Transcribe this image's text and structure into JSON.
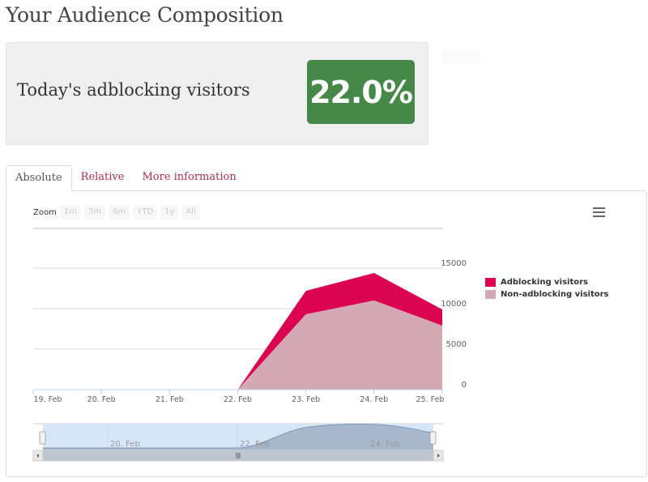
{
  "page": {
    "title": "Your Audience Composition"
  },
  "stat": {
    "label": "Today's adblocking visitors",
    "value": "22.0%",
    "badge_color": "#468847"
  },
  "tabs": [
    {
      "label": "Absolute",
      "active": true
    },
    {
      "label": "Relative",
      "active": false
    },
    {
      "label": "More information",
      "active": false
    }
  ],
  "zoom": {
    "label": "Zoom",
    "buttons": [
      "1m",
      "3m",
      "6m",
      "YTD",
      "1y",
      "All"
    ]
  },
  "menu": {
    "icon": "hamburger-menu-icon"
  },
  "legend": [
    {
      "label": "Adblocking visitors",
      "color": "#dc0450"
    },
    {
      "label": "Non-adblocking visitors",
      "color": "#d4a9b6"
    }
  ],
  "navigator": {
    "labels": [
      "20. Feb",
      "22. Feb",
      "24. Feb"
    ],
    "scroll_grip": "III"
  },
  "chart_data": {
    "type": "area",
    "stacked": true,
    "title": "",
    "xlabel": "",
    "ylabel": "",
    "categories": [
      "19. Feb",
      "20. Feb",
      "21. Feb",
      "22. Feb",
      "23. Feb",
      "24. Feb",
      "25. Feb"
    ],
    "series": [
      {
        "name": "Adblocking visitors",
        "color": "#dc0450",
        "values": [
          0,
          0,
          0,
          0,
          2900,
          3400,
          2000
        ]
      },
      {
        "name": "Non-adblocking visitors",
        "color": "#d4a9b6",
        "values": [
          0,
          0,
          0,
          0,
          9300,
          11000,
          7900
        ]
      }
    ],
    "y_ticks": [
      "0",
      "5000",
      "10000",
      "15000"
    ],
    "ylim": [
      0,
      15000
    ],
    "y_axis_position": "right",
    "grid": true,
    "legend_position": "right"
  }
}
